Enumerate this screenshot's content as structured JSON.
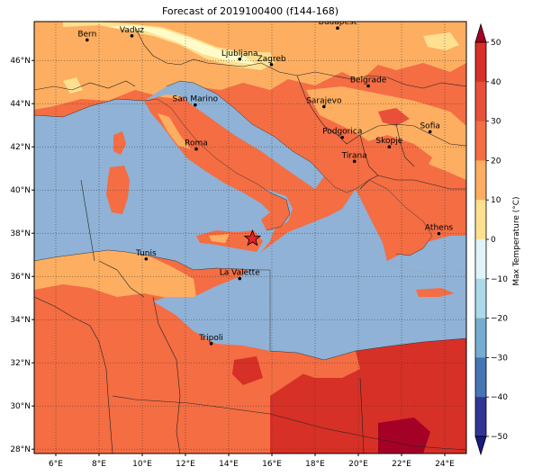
{
  "map": {
    "title": "Forecast of 2019100400 (f144-168)",
    "longitude_labels": [
      "6°E",
      "8°E",
      "10°E",
      "12°E",
      "14°E",
      "16°E",
      "18°E",
      "20°E",
      "22°E",
      "24°E"
    ],
    "longitude_values": [
      6,
      8,
      10,
      12,
      14,
      16,
      18,
      20,
      22,
      24
    ],
    "latitude_labels": [
      "46°N",
      "44°N",
      "42°N",
      "40°N",
      "38°N",
      "36°N",
      "34°N",
      "32°N",
      "30°N",
      "28°N"
    ],
    "latitude_values": [
      46,
      44,
      42,
      40,
      38,
      36,
      34,
      32,
      30,
      28
    ],
    "lon_range": [
      5,
      25
    ],
    "lat_range": [
      27.8,
      47.8
    ],
    "cities": [
      {
        "name": "Bern",
        "lon": 7.45,
        "lat": 46.95
      },
      {
        "name": "Vaduz",
        "lon": 9.52,
        "lat": 47.14
      },
      {
        "name": "Budapest",
        "lon": 19.04,
        "lat": 47.5
      },
      {
        "name": "Ljubljana",
        "lon": 14.51,
        "lat": 46.06
      },
      {
        "name": "Zagreb",
        "lon": 15.98,
        "lat": 45.81
      },
      {
        "name": "Belgrade",
        "lon": 20.46,
        "lat": 44.82
      },
      {
        "name": "San Marino",
        "lon": 12.45,
        "lat": 43.94
      },
      {
        "name": "Sarajevo",
        "lon": 18.41,
        "lat": 43.86
      },
      {
        "name": "Sofia",
        "lon": 23.32,
        "lat": 42.7
      },
      {
        "name": "Podgorica",
        "lon": 19.26,
        "lat": 42.44
      },
      {
        "name": "Skopje",
        "lon": 21.43,
        "lat": 42.0
      },
      {
        "name": "Roma",
        "lon": 12.5,
        "lat": 41.9
      },
      {
        "name": "Tirana",
        "lon": 19.82,
        "lat": 41.33
      },
      {
        "name": "Athens",
        "lon": 23.73,
        "lat": 37.98
      },
      {
        "name": "Tunis",
        "lon": 10.18,
        "lat": 36.81
      },
      {
        "name": "La Valette",
        "lon": 14.51,
        "lat": 35.9
      },
      {
        "name": "Tripoli",
        "lon": 13.19,
        "lat": 32.89
      }
    ],
    "marker": {
      "lon": 15.1,
      "lat": 37.75,
      "symbol": "star"
    }
  },
  "colorbar": {
    "label": "Max Temperature (°C)",
    "ticks": [
      50,
      40,
      30,
      20,
      10,
      0,
      -10,
      -20,
      -30,
      -40,
      -50
    ],
    "colors": {
      "top_arrow": "#a50026",
      "b40_50": "#d73027",
      "b30_40": "#e8503a",
      "b20_30": "#f46d43",
      "b10_20": "#fdae61",
      "b0_10": "#fee090",
      "bm10_0": "#e0f3f8",
      "bm20_m10": "#abd9e9",
      "bm30_m20": "#74add1",
      "bm40_m30": "#4575b4",
      "bm50_m40": "#313695",
      "bottom_arrow": "#1a1a80"
    }
  },
  "fields": {
    "sea": "#8fb2d6",
    "land_warm": "#f46d43",
    "land_mild": "#fdae61",
    "land_cool": "#fee090",
    "land_cold": "#fffbc8",
    "land_hot": "#d73027",
    "land_hottest": "#a50026"
  }
}
